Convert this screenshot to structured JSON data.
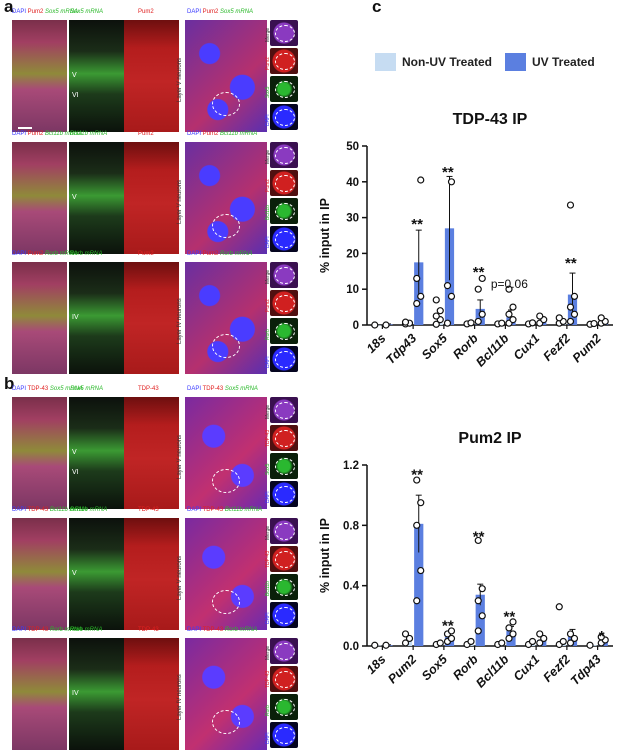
{
  "panels": {
    "a": "a",
    "b": "b",
    "c": "c"
  },
  "legend": {
    "items": [
      {
        "label": "Non-UV Treated",
        "color": "#c6dcf2"
      },
      {
        "label": "UV Treated",
        "color": "#5b7fe0"
      }
    ]
  },
  "micrographs": {
    "a": [
      {
        "h1": [
          "DAPI",
          "Pum2",
          "Sox5 mRNA"
        ],
        "h2": "Sox5 mRNA",
        "h3": "Pum2",
        "zoom": [
          "DAPI",
          "Pum2",
          "Sox5 mRNA"
        ],
        "side": "Layer V neurons",
        "layers": [
          "V",
          "VI"
        ],
        "tags": [
          "Merge",
          "Pum2",
          "Sox5",
          "DAPI"
        ]
      },
      {
        "h1": [
          "DAPI",
          "Pum2",
          "Bcl11b mRNA"
        ],
        "h2": "Bcl11b mRNA",
        "h3": "Pum2",
        "zoom": [
          "DAPI",
          "Pum2",
          "Bcl11b mRNA"
        ],
        "side": "Layer V neurons",
        "layers": [
          "V"
        ],
        "tags": [
          "Merge",
          "Pum2",
          "Bcl11b",
          "DAPI"
        ]
      },
      {
        "h1": [
          "DAPI",
          "Pum2",
          "Rorb mRNA"
        ],
        "h2": "Rorb mRNA",
        "h3": "Pum2",
        "zoom": [
          "DAPI",
          "Pum2",
          "Rorb mRNA"
        ],
        "side": "Layer IV neurons",
        "layers": [
          "IV"
        ],
        "tags": [
          "Merge",
          "Pum2",
          "Rorb",
          "DAPI"
        ]
      }
    ],
    "b": [
      {
        "h1": [
          "DAPI",
          "TDP-43",
          "Sox5 mRNA"
        ],
        "h2": "Sox5 mRNA",
        "h3": "TDP-43",
        "zoom": [
          "DAPI",
          "TDP-43",
          "Sox5 mRNA"
        ],
        "side": "Layer V neurons",
        "layers": [
          "V",
          "VI"
        ],
        "tags": [
          "Merge",
          "TDP-43",
          "Sox5",
          "DAPI"
        ]
      },
      {
        "h1": [
          "DAPI",
          "TDP-43",
          "Bcl11b mRNA"
        ],
        "h2": "Bcl11b mRNA",
        "h3": "TDP-43",
        "zoom": [
          "DAPI",
          "TDP-43",
          "Bcl11b mRNA"
        ],
        "side": "Layer V neurons",
        "layers": [
          "V"
        ],
        "tags": [
          "Merge",
          "TDP-43",
          "Bcl11b",
          "DAPI"
        ]
      },
      {
        "h1": [
          "DAPI",
          "TDP-43",
          "Rorb mRNA"
        ],
        "h2": "Rorb mRNA",
        "h3": "TDP-43",
        "zoom": [
          "DAPI",
          "TDP-43",
          "Rorb mRNA"
        ],
        "side": "Layer IV neurons",
        "layers": [
          "IV"
        ],
        "tags": [
          "Merge",
          "TDP-43",
          "Rorb",
          "DAPI"
        ]
      }
    ]
  },
  "chart_data": [
    {
      "type": "bar",
      "title": "TDP-43 IP",
      "ylabel": "% input in IP",
      "ylim": [
        0,
        50
      ],
      "yticks": [
        0,
        10,
        20,
        30,
        40,
        50
      ],
      "categories": [
        "18s",
        "Tdp43",
        "Sox5",
        "Rorb",
        "Bcl11b",
        "Cux1",
        "Fezf2",
        "Pum2"
      ],
      "series": [
        {
          "name": "Non-UV Treated",
          "values": [
            0,
            0.3,
            0.5,
            0.4,
            0.3,
            0.3,
            0.4,
            0.2
          ]
        },
        {
          "name": "UV Treated",
          "values": [
            0.2,
            17.5,
            27,
            4.5,
            2.2,
            1.2,
            8.5,
            1.0
          ],
          "err": [
            0.1,
            9,
            14.5,
            2.5,
            2,
            0.5,
            6,
            0.5
          ]
        }
      ],
      "points": [
        {
          "nonuv": [
            0
          ],
          "uv": [
            0
          ]
        },
        {
          "nonuv": [
            0.3,
            0.5,
            0.8
          ],
          "uv": [
            6,
            8,
            13,
            40.5
          ]
        },
        {
          "nonuv": [
            0.2,
            1.5,
            2.5,
            4,
            7
          ],
          "uv": [
            0.5,
            8,
            11,
            40
          ]
        },
        {
          "nonuv": [
            0.3,
            0.6
          ],
          "uv": [
            1,
            3,
            10,
            13
          ]
        },
        {
          "nonuv": [
            0.3,
            0.5
          ],
          "uv": [
            0.5,
            1.5,
            3,
            5,
            10
          ]
        },
        {
          "nonuv": [
            0.3,
            0.6
          ],
          "uv": [
            0.5,
            1.5,
            2.5
          ]
        },
        {
          "nonuv": [
            0.5,
            1,
            2
          ],
          "uv": [
            1,
            3,
            5,
            8,
            33.5
          ]
        },
        {
          "nonuv": [
            0.2,
            0.4
          ],
          "uv": [
            0.5,
            1,
            2
          ]
        }
      ],
      "annotations": [
        {
          "index": 1,
          "text": "**",
          "y": 28
        },
        {
          "index": 2,
          "text": "**",
          "y": 42.5
        },
        {
          "index": 3,
          "text": "**",
          "y": 14.5
        },
        {
          "index": 4,
          "text": "p=0.06",
          "y": 11.5
        },
        {
          "index": 6,
          "text": "**",
          "y": 17
        }
      ]
    },
    {
      "type": "bar",
      "title": "Pum2 IP",
      "ylabel": "% input in IP",
      "ylim": [
        0,
        1.2
      ],
      "yticks": [
        0.0,
        0.4,
        0.8,
        1.2
      ],
      "tickLabels": [
        "0.0",
        "0.4",
        "0.8",
        "1.2"
      ],
      "categories": [
        "18s",
        "Pum2",
        "Sox5",
        "Rorb",
        "Bcl11b",
        "Cux1",
        "Fezf2",
        "Tdp43"
      ],
      "series": [
        {
          "name": "Non-UV Treated",
          "values": [
            0.003,
            0.03,
            0.01,
            0.01,
            0.01,
            0.01,
            0.02,
            0.005
          ]
        },
        {
          "name": "UV Treated",
          "values": [
            0.005,
            0.81,
            0.06,
            0.34,
            0.1,
            0.04,
            0.06,
            0.03
          ],
          "err": [
            0.003,
            0.19,
            0.02,
            0.07,
            0.03,
            0.02,
            0.05,
            0.01
          ]
        }
      ],
      "points": [
        {
          "nonuv": [
            0.005
          ],
          "uv": [
            0.005
          ]
        },
        {
          "nonuv": [
            0.02,
            0.05,
            0.08
          ],
          "uv": [
            0.3,
            0.5,
            0.8,
            0.95,
            1.1
          ]
        },
        {
          "nonuv": [
            0.01,
            0.02
          ],
          "uv": [
            0.03,
            0.05,
            0.08,
            0.1
          ]
        },
        {
          "nonuv": [
            0.01,
            0.03
          ],
          "uv": [
            0.1,
            0.2,
            0.3,
            0.38,
            0.7
          ]
        },
        {
          "nonuv": [
            0.01,
            0.02
          ],
          "uv": [
            0.05,
            0.08,
            0.12,
            0.16
          ]
        },
        {
          "nonuv": [
            0.01,
            0.03
          ],
          "uv": [
            0.02,
            0.05,
            0.08
          ]
        },
        {
          "nonuv": [
            0.01,
            0.03,
            0.26
          ],
          "uv": [
            0.02,
            0.05,
            0.08
          ]
        },
        {
          "nonuv": [
            0.005
          ],
          "uv": [
            0.02,
            0.04,
            0.06
          ]
        }
      ],
      "annotations": [
        {
          "index": 1,
          "text": "**",
          "y": 1.13
        },
        {
          "index": 2,
          "text": "**",
          "y": 0.13
        },
        {
          "index": 3,
          "text": "**",
          "y": 0.72
        },
        {
          "index": 4,
          "text": "**",
          "y": 0.19
        },
        {
          "index": 7,
          "text": "*",
          "y": 0.06
        }
      ]
    }
  ]
}
